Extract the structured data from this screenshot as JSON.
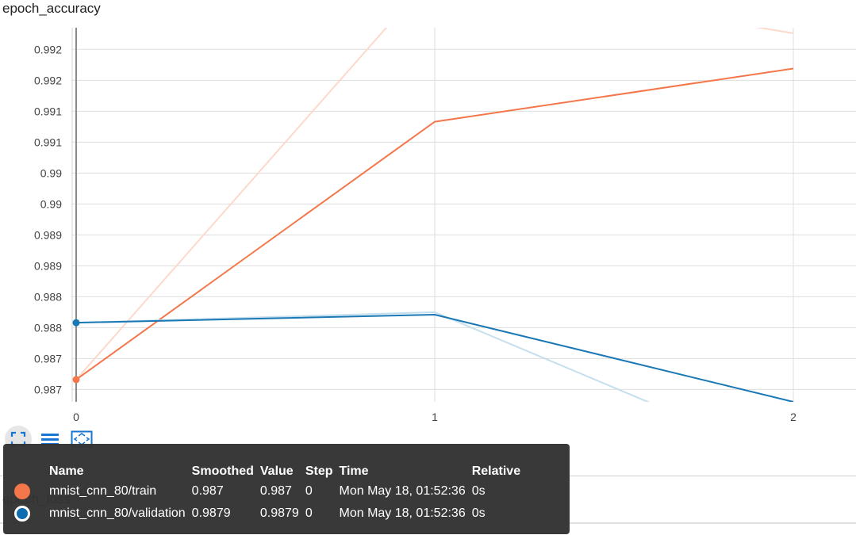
{
  "chart_data": {
    "type": "line",
    "title": "epoch_accuracy",
    "x": [
      0,
      1,
      2
    ],
    "xticks": [
      "0",
      "1",
      "2"
    ],
    "xlim": [
      -0.01,
      2.17
    ],
    "ylim": [
      0.98665,
      0.9927
    ],
    "yticks": [
      {
        "value": 0.98685,
        "label": "0.987"
      },
      {
        "value": 0.98735,
        "label": "0.987"
      },
      {
        "value": 0.98785,
        "label": "0.988"
      },
      {
        "value": 0.98835,
        "label": "0.988"
      },
      {
        "value": 0.98885,
        "label": "0.989"
      },
      {
        "value": 0.98935,
        "label": "0.989"
      },
      {
        "value": 0.98985,
        "label": "0.99"
      },
      {
        "value": 0.99035,
        "label": "0.99"
      },
      {
        "value": 0.99085,
        "label": "0.991"
      },
      {
        "value": 0.99135,
        "label": "0.991"
      },
      {
        "value": 0.99185,
        "label": "0.992"
      },
      {
        "value": 0.99235,
        "label": "0.992"
      }
    ],
    "grid": true,
    "series": [
      {
        "name": "mnist_cnn_80/train",
        "color": "#f4774b",
        "raw_color": "#fcd9cc",
        "smoothed": [
          0.98701,
          0.99118,
          0.99204
        ],
        "raw": [
          0.98701,
          0.99359,
          0.99261
        ]
      },
      {
        "name": "mnist_cnn_80/validation",
        "color": "#1a78b4",
        "raw_color": "#c6dfee",
        "smoothed": [
          0.98793,
          0.98806,
          0.98665
        ],
        "raw": [
          0.98793,
          0.9881,
          0.98566
        ]
      }
    ]
  },
  "toolbar": {
    "fullscreen_icon": "fullscreen-icon",
    "log_scale_icon": "log-scale-icon",
    "fit_domain_icon": "fit-domain-icon"
  },
  "tooltip": {
    "headers": {
      "name": "Name",
      "smoothed": "Smoothed",
      "value": "Value",
      "step": "Step",
      "time": "Time",
      "relative": "Relative"
    },
    "rows": [
      {
        "name": "mnist_cnn_80/train",
        "smoothed": "0.987",
        "value": "0.987",
        "step": "0",
        "time": "Mon May 18, 01:52:36",
        "relative": "0s",
        "color": "#f4774b",
        "filled": true
      },
      {
        "name": "mnist_cnn_80/validation",
        "smoothed": "0.9879",
        "value": "0.9879",
        "step": "0",
        "time": "Mon May 18, 01:52:36",
        "relative": "0s",
        "color": "#0c6eb0",
        "filled": false
      }
    ]
  },
  "next_chart": {
    "title": "epoch_loss"
  }
}
